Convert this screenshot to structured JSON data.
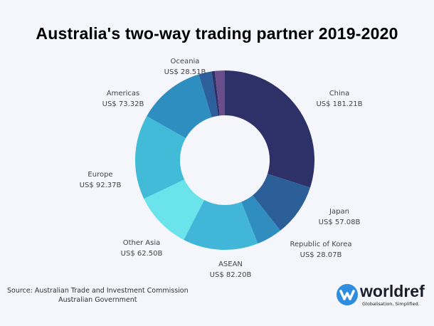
{
  "chart_data": {
    "type": "pie",
    "title": "Australia's two-way trading partner 2019-2020",
    "unit_prefix": "US$ ",
    "unit_suffix": "B",
    "categories": [
      "China",
      "Japan",
      "Republic of Korea",
      "ASEAN",
      "Other Asia",
      "Europe",
      "Americas",
      "Oceania"
    ],
    "values": [
      181.21,
      57.08,
      28.07,
      82.2,
      62.5,
      92.37,
      73.32,
      28.51
    ],
    "value_labels": [
      "US$ 181.21B",
      "US$ 57.08B",
      "US$ 28.07B",
      "US$ 82.20B",
      "US$ 62.50B",
      "US$ 92.37B",
      "US$ 73.32B",
      "US$ 28.51B"
    ],
    "colors": [
      "#2e3168",
      "#2c5e98",
      "#2f8dbf",
      "#41b6d9",
      "#6be3ea",
      "#42bbd9",
      "#2e8ec0",
      "#6a4e8c"
    ],
    "donut": true,
    "start": "top",
    "direction": "clockwise"
  },
  "source": {
    "line1": "Source: Australian Trade and Investment Commission",
    "line2": "Australian Government"
  },
  "logo": {
    "word": "worldref",
    "tagline": "Globalisation, Simplified.",
    "color": "#2f8de0"
  },
  "background": "#f4f6fb"
}
